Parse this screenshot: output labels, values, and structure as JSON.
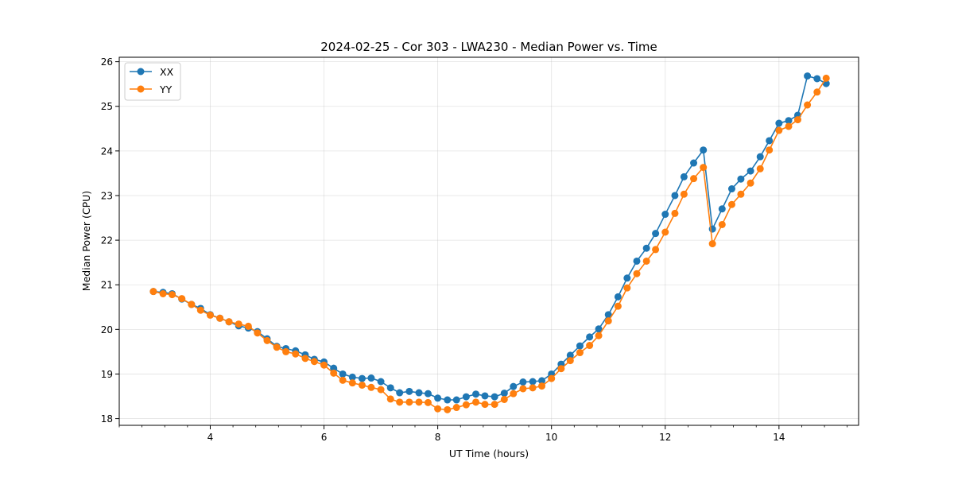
{
  "chart_data": {
    "type": "line",
    "title": "2024-02-25 - Cor 303 - LWA230 - Median Power vs. Time",
    "xlabel": "UT Time (hours)",
    "ylabel": "Median Power (CPU)",
    "xlim": [
      2.4,
      15.4
    ],
    "ylim": [
      17.85,
      26.1
    ],
    "xticks": [
      4,
      6,
      8,
      10,
      12,
      14
    ],
    "xtick_labels": [
      "4",
      "6",
      "8",
      "10",
      "12",
      "14"
    ],
    "x_minor_step": 0.4,
    "yticks": [
      18,
      19,
      20,
      21,
      22,
      23,
      24,
      25,
      26
    ],
    "ytick_labels": [
      "18",
      "19",
      "20",
      "21",
      "22",
      "23",
      "24",
      "25",
      "26"
    ],
    "grid": true,
    "legend_position": "top-left",
    "series": [
      {
        "name": "XX",
        "color": "#1f77b4",
        "x": [
          3.0,
          3.17,
          3.33,
          3.5,
          3.67,
          3.83,
          4.0,
          4.17,
          4.33,
          4.5,
          4.67,
          4.83,
          5.0,
          5.17,
          5.33,
          5.5,
          5.67,
          5.83,
          6.0,
          6.17,
          6.33,
          6.5,
          6.67,
          6.83,
          7.0,
          7.17,
          7.33,
          7.5,
          7.67,
          7.83,
          8.0,
          8.17,
          8.33,
          8.5,
          8.67,
          8.83,
          9.0,
          9.17,
          9.33,
          9.5,
          9.67,
          9.83,
          10.0,
          10.17,
          10.33,
          10.5,
          10.67,
          10.83,
          11.0,
          11.17,
          11.33,
          11.5,
          11.67,
          11.83,
          12.0,
          12.17,
          12.33,
          12.5,
          12.67,
          12.83,
          13.0,
          13.17,
          13.33,
          13.5,
          13.67,
          13.83,
          14.0,
          14.17,
          14.33,
          14.5,
          14.67,
          14.83
        ],
        "values": [
          20.85,
          20.83,
          20.8,
          20.68,
          20.56,
          20.47,
          20.33,
          20.25,
          20.17,
          20.08,
          20.03,
          19.95,
          19.79,
          19.62,
          19.57,
          19.52,
          19.43,
          19.33,
          19.27,
          19.13,
          19.0,
          18.93,
          18.9,
          18.91,
          18.83,
          18.69,
          18.58,
          18.61,
          18.58,
          18.56,
          18.46,
          18.42,
          18.42,
          18.49,
          18.55,
          18.51,
          18.49,
          18.57,
          18.72,
          18.82,
          18.83,
          18.85,
          19.0,
          19.22,
          19.42,
          19.63,
          19.83,
          20.01,
          20.33,
          20.73,
          21.15,
          21.53,
          21.82,
          22.15,
          22.58,
          23.0,
          23.42,
          23.73,
          24.02,
          22.25,
          22.7,
          23.15,
          23.37,
          23.55,
          23.87,
          24.23,
          24.62,
          24.68,
          24.8,
          25.68,
          25.62,
          25.51
        ]
      },
      {
        "name": "YY",
        "color": "#ff7f0e",
        "x": [
          3.0,
          3.17,
          3.33,
          3.5,
          3.67,
          3.83,
          4.0,
          4.17,
          4.33,
          4.5,
          4.67,
          4.83,
          5.0,
          5.17,
          5.33,
          5.5,
          5.67,
          5.83,
          6.0,
          6.17,
          6.33,
          6.5,
          6.67,
          6.83,
          7.0,
          7.17,
          7.33,
          7.5,
          7.67,
          7.83,
          8.0,
          8.17,
          8.33,
          8.5,
          8.67,
          8.83,
          9.0,
          9.17,
          9.33,
          9.5,
          9.67,
          9.83,
          10.0,
          10.17,
          10.33,
          10.5,
          10.67,
          10.83,
          11.0,
          11.17,
          11.33,
          11.5,
          11.67,
          11.83,
          12.0,
          12.17,
          12.33,
          12.5,
          12.67,
          12.83,
          13.0,
          13.17,
          13.33,
          13.5,
          13.67,
          13.83,
          14.0,
          14.17,
          14.33,
          14.5,
          14.67,
          14.83
        ],
        "values": [
          20.85,
          20.8,
          20.78,
          20.69,
          20.56,
          20.43,
          20.32,
          20.25,
          20.17,
          20.12,
          20.07,
          19.92,
          19.75,
          19.6,
          19.5,
          19.45,
          19.35,
          19.28,
          19.2,
          19.02,
          18.86,
          18.8,
          18.75,
          18.7,
          18.65,
          18.44,
          18.37,
          18.37,
          18.37,
          18.36,
          18.22,
          18.2,
          18.25,
          18.31,
          18.37,
          18.32,
          18.32,
          18.43,
          18.56,
          18.67,
          18.69,
          18.73,
          18.9,
          19.12,
          19.3,
          19.48,
          19.64,
          19.86,
          20.19,
          20.52,
          20.93,
          21.25,
          21.53,
          21.79,
          22.18,
          22.6,
          23.03,
          23.38,
          23.63,
          21.92,
          22.35,
          22.8,
          23.03,
          23.28,
          23.6,
          24.02,
          24.46,
          24.55,
          24.7,
          25.03,
          25.32,
          25.63
        ]
      }
    ]
  }
}
